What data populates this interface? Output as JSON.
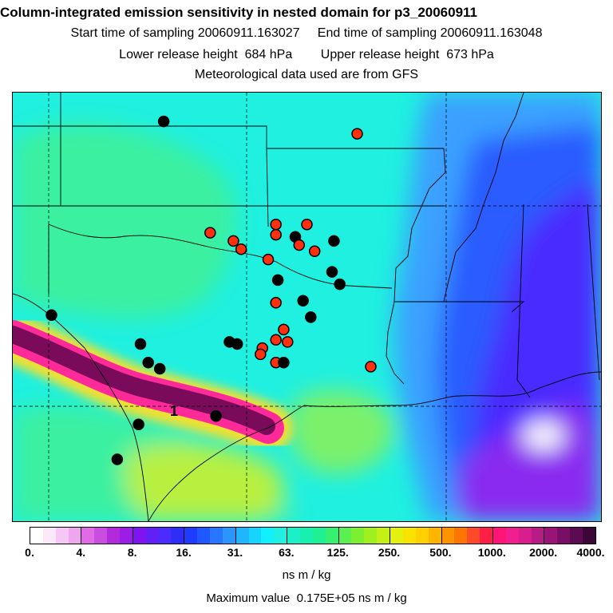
{
  "header": {
    "title": "Column-integrated emission sensitivity in nested domain for p3_20060911",
    "start_label": "Start time of sampling 20060911.163027",
    "end_label": "End time of sampling 20060911.163048",
    "lower_label": "Lower release height  684 hPa",
    "upper_label": "Upper release height  673 hPa",
    "met_label": "Meteorological data used are from GFS"
  },
  "map": {
    "plume_label": "1",
    "colors": {
      "background": "#1ff0e0",
      "land_green": "#3bf0a0",
      "light_green": "#7cf06a",
      "lime": "#b8f040",
      "blue_light": "#3aa0ff",
      "blue": "#2a5cff",
      "indigo": "#4a2cff",
      "violet": "#8a2cf0",
      "plume_outer": "#f0e030",
      "plume_mid": "#ff2a9a",
      "plume_core": "#7a0a5a",
      "marker_red": "#ff3010",
      "marker_black": "#000000"
    },
    "markers": [
      {
        "type": "black",
        "lon": -98.3,
        "lat": 36.9
      },
      {
        "type": "red",
        "lon": -93.3,
        "lat": 36.6
      },
      {
        "type": "red",
        "lon": -97.1,
        "lat": 34.2
      },
      {
        "type": "red",
        "lon": -96.5,
        "lat": 34.0
      },
      {
        "type": "red",
        "lon": -96.3,
        "lat": 33.8
      },
      {
        "type": "red",
        "lon": -95.4,
        "lat": 34.4
      },
      {
        "type": "red",
        "lon": -95.4,
        "lat": 34.15
      },
      {
        "type": "black",
        "lon": -94.9,
        "lat": 34.1
      },
      {
        "type": "red",
        "lon": -94.6,
        "lat": 34.4
      },
      {
        "type": "red",
        "lon": -94.8,
        "lat": 33.9
      },
      {
        "type": "red",
        "lon": -94.4,
        "lat": 33.75
      },
      {
        "type": "black",
        "lon": -93.9,
        "lat": 34.0
      },
      {
        "type": "red",
        "lon": -95.6,
        "lat": 33.55
      },
      {
        "type": "black",
        "lon": -93.95,
        "lat": 33.25
      },
      {
        "type": "black",
        "lon": -95.35,
        "lat": 33.05
      },
      {
        "type": "black",
        "lon": -93.75,
        "lat": 32.95
      },
      {
        "type": "red",
        "lon": -95.4,
        "lat": 32.5
      },
      {
        "type": "black",
        "lon": -94.7,
        "lat": 32.55
      },
      {
        "type": "black",
        "lon": -94.5,
        "lat": 32.15
      },
      {
        "type": "red",
        "lon": -95.2,
        "lat": 31.85
      },
      {
        "type": "red",
        "lon": -95.4,
        "lat": 31.6
      },
      {
        "type": "red",
        "lon": -95.1,
        "lat": 31.55
      },
      {
        "type": "red",
        "lon": -95.75,
        "lat": 31.4
      },
      {
        "type": "red",
        "lon": -95.8,
        "lat": 31.25
      },
      {
        "type": "black",
        "lon": -96.4,
        "lat": 31.5
      },
      {
        "type": "black",
        "lon": -96.6,
        "lat": 31.55
      },
      {
        "type": "red",
        "lon": -95.4,
        "lat": 31.05
      },
      {
        "type": "black",
        "lon": -95.2,
        "lat": 31.05
      },
      {
        "type": "black",
        "lon": -98.9,
        "lat": 31.5
      },
      {
        "type": "black",
        "lon": -98.7,
        "lat": 31.05
      },
      {
        "type": "black",
        "lon": -98.4,
        "lat": 30.9
      },
      {
        "type": "black",
        "lon": -101.2,
        "lat": 32.2
      },
      {
        "type": "red",
        "lon": -92.95,
        "lat": 30.95
      },
      {
        "type": "black",
        "lon": -96.95,
        "lat": 29.75
      },
      {
        "type": "black",
        "lon": -98.95,
        "lat": 29.55
      },
      {
        "type": "black",
        "lon": -99.5,
        "lat": 28.7
      }
    ]
  },
  "colorbar": {
    "colors": [
      "#ffffff",
      "#fde8fa",
      "#f6c7f4",
      "#eea6ee",
      "#e06be6",
      "#c94de0",
      "#b22adc",
      "#9a1ee6",
      "#8014f0",
      "#6220f4",
      "#4a2cff",
      "#2e2ef8",
      "#1e3cff",
      "#2058ff",
      "#2876ff",
      "#2a94ff",
      "#20b6ff",
      "#16d4ff",
      "#10f0ff",
      "#1ff0e0",
      "#1cf0c8",
      "#18f0b0",
      "#20f094",
      "#38f070",
      "#5af050",
      "#7cf030",
      "#a0f020",
      "#c4f018",
      "#e4f010",
      "#f8e400",
      "#ffd000",
      "#ffb400",
      "#ff9400",
      "#ff7400",
      "#ff4a2a",
      "#ff1e46",
      "#ff1478",
      "#f01e8e",
      "#d81e8c",
      "#b81a86",
      "#981477",
      "#7a0e66",
      "#5c0a52",
      "#3c0638"
    ],
    "tick_labels": [
      "0.",
      "4.",
      "8.",
      "16.",
      "31.",
      "63.",
      "125.",
      "250.",
      "500.",
      "1000.",
      "2000.",
      "4000."
    ],
    "units": "ns m / kg"
  },
  "footer": {
    "max_value": "Maximum value  0.175E+05 ns m / kg"
  }
}
